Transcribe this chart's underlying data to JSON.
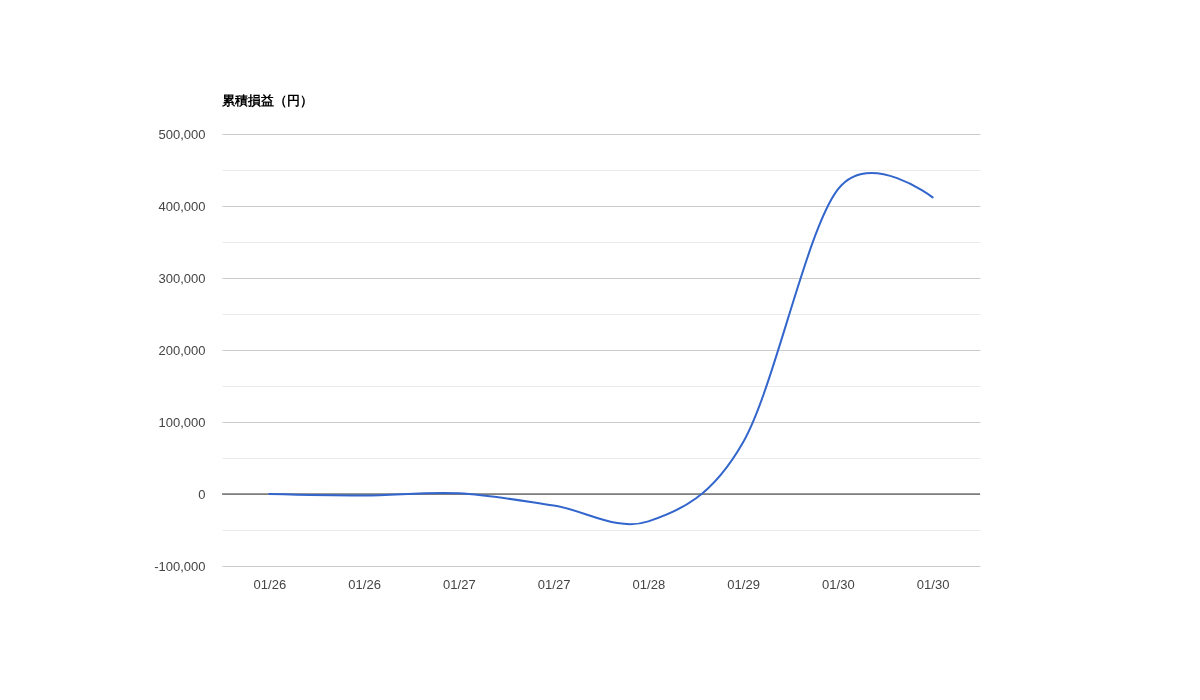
{
  "chart_data": {
    "type": "line",
    "title": "累積損益（円）",
    "categories": [
      "01/26",
      "01/26",
      "01/27",
      "01/27",
      "01/28",
      "01/29",
      "01/30",
      "01/30"
    ],
    "values": [
      0,
      -2000,
      1000,
      -16000,
      -38000,
      72000,
      423000,
      412000
    ],
    "color": "#3366cc",
    "ylim": [
      -100000,
      500000
    ],
    "yticks": [
      {
        "value": -100000,
        "label": "-100,000"
      },
      {
        "value": -50000,
        "label": null
      },
      0,
      {
        "value": 50000,
        "label": null
      },
      {
        "value": 100000,
        "label": "100,000"
      },
      {
        "value": 150000,
        "label": null
      },
      {
        "value": 200000,
        "label": "200,000"
      },
      {
        "value": 250000,
        "label": null
      },
      {
        "value": 300000,
        "label": "300,000"
      },
      {
        "value": 350000,
        "label": null
      },
      {
        "value": 400000,
        "label": "400,000"
      },
      {
        "value": 450000,
        "label": null
      },
      {
        "value": 500000,
        "label": "500,000"
      }
    ],
    "grid": "y",
    "ref_lines": [
      {
        "axis": "y",
        "value": 0,
        "color": "#333333"
      }
    ]
  }
}
